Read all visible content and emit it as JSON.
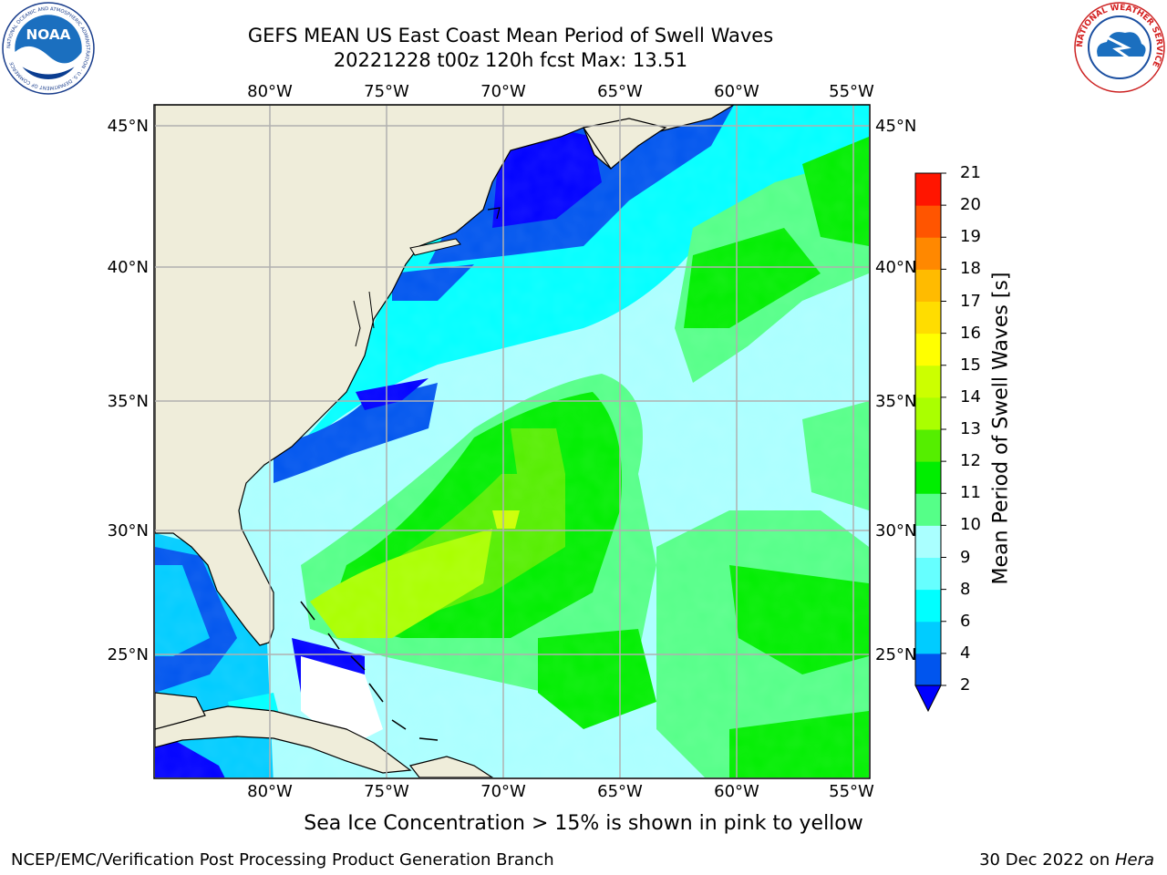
{
  "header": {
    "title_line1": "GEFS MEAN US East Coast Mean Period of Swell Waves",
    "title_line2": "20221228 t00z 120h fcst   Max: 13.51"
  },
  "logos": {
    "left": "noaa-logo",
    "left_text": "NOAA",
    "left_ring_text": "NATIONAL OCEANIC AND ATMOSPHERIC ADMINISTRATION · U.S. DEPARTMENT OF COMMERCE",
    "right": "nws-logo",
    "right_ring_text": "NATIONAL WEATHER SERVICE"
  },
  "map": {
    "lon_labels": [
      "80°W",
      "75°W",
      "70°W",
      "65°W",
      "60°W",
      "55°W"
    ],
    "lat_labels": [
      "45°N",
      "40°N",
      "35°N",
      "30°N",
      "25°N"
    ],
    "lon_values": [
      -80,
      -75,
      -70,
      -65,
      -60,
      -55
    ],
    "lat_values": [
      45,
      40,
      35,
      30,
      25
    ],
    "lon_range": [
      -85,
      -54.5
    ],
    "lat_range": [
      20.5,
      46
    ],
    "grid": true,
    "colors": {
      "land": "#efedda",
      "coast": "#000000",
      "no_data": "#ffffff",
      "grid": "#b0b0b0"
    }
  },
  "colorbar": {
    "label": "Mean Period of Swell Waves [s]",
    "ticks": [
      "2",
      "4",
      "6",
      "8",
      "9",
      "10",
      "11",
      "12",
      "13",
      "14",
      "15",
      "16",
      "17",
      "18",
      "19",
      "20",
      "21"
    ],
    "colors": [
      "#0055ee",
      "#00ccff",
      "#00ffff",
      "#66ffff",
      "#aaffff",
      "#55ff88",
      "#00ee00",
      "#55ee00",
      "#aaff00",
      "#ccff00",
      "#ffff00",
      "#ffdd00",
      "#ffbb00",
      "#ff8800",
      "#ff5500",
      "#ff1500"
    ],
    "under_color": "#0000ff"
  },
  "footer": {
    "note": "Sea Ice Concentration > 15% is shown in pink to yellow",
    "left": "NCEP/EMC/Verification Post Processing Product Generation Branch",
    "right_date": "30 Dec 2022 on ",
    "right_machine": "Hera"
  }
}
